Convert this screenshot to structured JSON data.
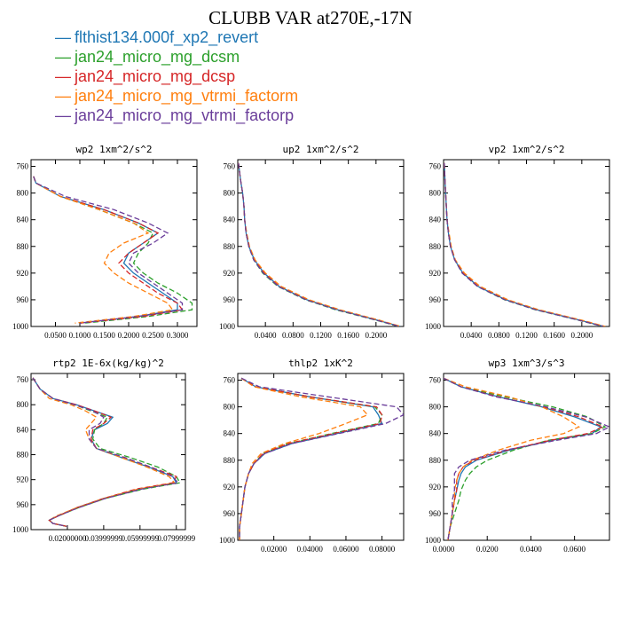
{
  "title": "CLUBB VAR at270E,-17N",
  "legend": [
    {
      "name": "flthist134.000f_xp2_revert",
      "color": "#1f77b4",
      "dash": ""
    },
    {
      "name": "jan24_micro_mg_dcsm",
      "color": "#2ca02c",
      "dash": "6,3"
    },
    {
      "name": "jan24_micro_mg_dcsp",
      "color": "#d62728",
      "dash": "6,3"
    },
    {
      "name": "jan24_micro_mg_vtrmi_factorm",
      "color": "#ff7f0e",
      "dash": "6,3"
    },
    {
      "name": "jan24_micro_mg_vtrmi_factorp",
      "color": "#6a3d9a",
      "dash": "6,3"
    }
  ],
  "chart_data": [
    {
      "type": "line",
      "title": "wp2  1xm^2/s^2",
      "xlim": [
        0.0,
        0.34
      ],
      "ylim": [
        750,
        1000
      ],
      "xticks": [
        0.05,
        0.1,
        0.15,
        0.2,
        0.25,
        0.3
      ],
      "xtick_labels": [
        "0.0500",
        "0.1000",
        "0.1500",
        "0.2000",
        "0.2500",
        "0.3000"
      ],
      "yticks": [
        760,
        800,
        840,
        880,
        920,
        960,
        1000
      ],
      "y": [
        775,
        785,
        805,
        825,
        845,
        860,
        875,
        890,
        905,
        920,
        935,
        950,
        965,
        975,
        985,
        995
      ],
      "series": [
        {
          "values": [
            0.005,
            0.01,
            0.06,
            0.15,
            0.22,
            0.26,
            0.23,
            0.2,
            0.19,
            0.21,
            0.24,
            0.27,
            0.3,
            0.3,
            0.22,
            0.1
          ]
        },
        {
          "values": [
            0.005,
            0.01,
            0.06,
            0.14,
            0.21,
            0.25,
            0.24,
            0.22,
            0.21,
            0.23,
            0.26,
            0.3,
            0.33,
            0.33,
            0.24,
            0.11
          ]
        },
        {
          "values": [
            0.005,
            0.01,
            0.06,
            0.15,
            0.22,
            0.26,
            0.23,
            0.2,
            0.18,
            0.2,
            0.23,
            0.26,
            0.3,
            0.31,
            0.23,
            0.1
          ]
        },
        {
          "values": [
            0.005,
            0.01,
            0.06,
            0.14,
            0.21,
            0.24,
            0.19,
            0.16,
            0.15,
            0.17,
            0.2,
            0.24,
            0.28,
            0.29,
            0.21,
            0.09
          ]
        },
        {
          "values": [
            0.005,
            0.01,
            0.07,
            0.17,
            0.24,
            0.28,
            0.25,
            0.21,
            0.2,
            0.22,
            0.25,
            0.28,
            0.31,
            0.31,
            0.22,
            0.1
          ]
        }
      ]
    },
    {
      "type": "line",
      "title": "up2  1xm^2/s^2",
      "xlim": [
        0.0,
        0.24
      ],
      "ylim": [
        750,
        1000
      ],
      "xticks": [
        0.04,
        0.08,
        0.12,
        0.16,
        0.2
      ],
      "xtick_labels": [
        "0.0400",
        "0.0800",
        "0.1200",
        "0.1600",
        "0.2000"
      ],
      "yticks": [
        760,
        800,
        840,
        880,
        920,
        960,
        1000
      ],
      "y": [
        755,
        780,
        800,
        820,
        840,
        860,
        880,
        900,
        920,
        940,
        960,
        975,
        990,
        1000
      ],
      "series": [
        {
          "values": [
            0.001,
            0.004,
            0.007,
            0.009,
            0.01,
            0.012,
            0.016,
            0.024,
            0.038,
            0.06,
            0.1,
            0.145,
            0.2,
            0.235
          ]
        },
        {
          "values": [
            0.001,
            0.004,
            0.007,
            0.009,
            0.01,
            0.012,
            0.016,
            0.023,
            0.036,
            0.058,
            0.098,
            0.142,
            0.198,
            0.233
          ]
        },
        {
          "values": [
            0.001,
            0.004,
            0.007,
            0.009,
            0.01,
            0.012,
            0.016,
            0.024,
            0.038,
            0.06,
            0.1,
            0.145,
            0.2,
            0.235
          ]
        },
        {
          "values": [
            0.001,
            0.004,
            0.007,
            0.009,
            0.01,
            0.013,
            0.017,
            0.025,
            0.04,
            0.063,
            0.103,
            0.148,
            0.203,
            0.236
          ]
        },
        {
          "values": [
            0.001,
            0.004,
            0.007,
            0.009,
            0.01,
            0.012,
            0.016,
            0.023,
            0.037,
            0.059,
            0.099,
            0.144,
            0.199,
            0.234
          ]
        }
      ]
    },
    {
      "type": "line",
      "title": "vp2  1xm^2/s^2",
      "xlim": [
        0.0,
        0.24
      ],
      "ylim": [
        750,
        1000
      ],
      "xticks": [
        0.04,
        0.08,
        0.12,
        0.16,
        0.2
      ],
      "xtick_labels": [
        "0.0400",
        "0.0800",
        "0.1200",
        "0.1600",
        "0.2000"
      ],
      "yticks": [
        760,
        800,
        840,
        880,
        920,
        960,
        1000
      ],
      "y": [
        755,
        780,
        800,
        820,
        840,
        860,
        880,
        900,
        920,
        940,
        960,
        975,
        990,
        1000
      ],
      "series": [
        {
          "values": [
            0.001,
            0.002,
            0.003,
            0.004,
            0.005,
            0.007,
            0.01,
            0.016,
            0.028,
            0.05,
            0.09,
            0.135,
            0.195,
            0.232
          ]
        },
        {
          "values": [
            0.001,
            0.002,
            0.003,
            0.004,
            0.005,
            0.007,
            0.01,
            0.016,
            0.027,
            0.049,
            0.088,
            0.133,
            0.193,
            0.23
          ]
        },
        {
          "values": [
            0.001,
            0.002,
            0.003,
            0.004,
            0.005,
            0.007,
            0.01,
            0.016,
            0.028,
            0.05,
            0.09,
            0.135,
            0.195,
            0.232
          ]
        },
        {
          "values": [
            0.001,
            0.002,
            0.003,
            0.004,
            0.005,
            0.008,
            0.011,
            0.017,
            0.03,
            0.053,
            0.093,
            0.138,
            0.198,
            0.234
          ]
        },
        {
          "values": [
            0.001,
            0.002,
            0.003,
            0.004,
            0.005,
            0.007,
            0.01,
            0.016,
            0.027,
            0.049,
            0.089,
            0.134,
            0.194,
            0.231
          ]
        }
      ]
    },
    {
      "type": "line",
      "title": "rtp2  1E-6x(kg/kg)^2",
      "xlim": [
        0.0,
        0.085
      ],
      "ylim": [
        750,
        1000
      ],
      "xticks": [
        0.02,
        0.04,
        0.06,
        0.08
      ],
      "xtick_labels": [
        "0.02000000",
        "0.03999999",
        "0.05999999",
        "0.07999999"
      ],
      "yticks": [
        760,
        800,
        840,
        880,
        920,
        960,
        1000
      ],
      "y": [
        757,
        775,
        790,
        800,
        810,
        820,
        830,
        840,
        855,
        870,
        885,
        900,
        915,
        925,
        935,
        950,
        965,
        978,
        985,
        990,
        995
      ],
      "series": [
        {
          "values": [
            0.001,
            0.005,
            0.012,
            0.025,
            0.035,
            0.045,
            0.042,
            0.035,
            0.033,
            0.036,
            0.05,
            0.065,
            0.078,
            0.08,
            0.06,
            0.04,
            0.025,
            0.015,
            0.01,
            0.012,
            0.02
          ]
        },
        {
          "values": [
            0.001,
            0.005,
            0.012,
            0.024,
            0.033,
            0.042,
            0.04,
            0.035,
            0.034,
            0.038,
            0.055,
            0.07,
            0.08,
            0.082,
            0.062,
            0.041,
            0.026,
            0.015,
            0.01,
            0.012,
            0.02
          ]
        },
        {
          "values": [
            0.001,
            0.005,
            0.012,
            0.025,
            0.035,
            0.044,
            0.04,
            0.034,
            0.033,
            0.036,
            0.052,
            0.066,
            0.08,
            0.078,
            0.058,
            0.04,
            0.025,
            0.015,
            0.01,
            0.012,
            0.02
          ]
        },
        {
          "values": [
            0.001,
            0.005,
            0.01,
            0.022,
            0.03,
            0.036,
            0.033,
            0.03,
            0.032,
            0.036,
            0.05,
            0.064,
            0.076,
            0.079,
            0.059,
            0.04,
            0.025,
            0.014,
            0.01,
            0.012,
            0.02
          ]
        },
        {
          "values": [
            0.001,
            0.005,
            0.012,
            0.024,
            0.034,
            0.04,
            0.038,
            0.032,
            0.032,
            0.036,
            0.052,
            0.066,
            0.078,
            0.081,
            0.061,
            0.041,
            0.026,
            0.015,
            0.01,
            0.012,
            0.02
          ]
        }
      ]
    },
    {
      "type": "line",
      "title": "thlp2  1xK^2",
      "xlim": [
        0.0,
        0.092
      ],
      "ylim": [
        750,
        1000
      ],
      "xticks": [
        0.02,
        0.04,
        0.06,
        0.08
      ],
      "xtick_labels": [
        "0.02000",
        "0.04000",
        "0.06000",
        "0.08000"
      ],
      "yticks": [
        760,
        800,
        840,
        880,
        920,
        960,
        1000
      ],
      "y": [
        757,
        770,
        785,
        800,
        812,
        825,
        840,
        855,
        870,
        885,
        900,
        920,
        940,
        960,
        980,
        1000
      ],
      "series": [
        {
          "values": [
            0.002,
            0.01,
            0.04,
            0.075,
            0.078,
            0.08,
            0.055,
            0.03,
            0.015,
            0.009,
            0.006,
            0.004,
            0.003,
            0.002,
            0.001,
            0.001
          ]
        },
        {
          "values": [
            0.002,
            0.01,
            0.04,
            0.076,
            0.08,
            0.078,
            0.052,
            0.028,
            0.014,
            0.009,
            0.006,
            0.004,
            0.003,
            0.002,
            0.001,
            0.001
          ]
        },
        {
          "values": [
            0.002,
            0.01,
            0.04,
            0.077,
            0.08,
            0.079,
            0.053,
            0.028,
            0.014,
            0.009,
            0.006,
            0.004,
            0.003,
            0.002,
            0.001,
            0.001
          ]
        },
        {
          "values": [
            0.002,
            0.009,
            0.035,
            0.068,
            0.072,
            0.06,
            0.045,
            0.026,
            0.013,
            0.008,
            0.006,
            0.004,
            0.003,
            0.002,
            0.001,
            0.001
          ]
        },
        {
          "values": [
            0.002,
            0.012,
            0.05,
            0.088,
            0.092,
            0.082,
            0.056,
            0.03,
            0.015,
            0.009,
            0.006,
            0.004,
            0.003,
            0.002,
            0.001,
            0.001
          ]
        }
      ]
    },
    {
      "type": "line",
      "title": "wp3  1xm^3/s^3",
      "xlim": [
        0.0,
        0.076
      ],
      "ylim": [
        750,
        1000
      ],
      "xticks": [
        0.0,
        0.02,
        0.04,
        0.06
      ],
      "xtick_labels": [
        "0.0000",
        "0.0200",
        "0.0400",
        "0.0600"
      ],
      "yticks": [
        760,
        800,
        840,
        880,
        920,
        960,
        1000
      ],
      "y": [
        757,
        770,
        785,
        800,
        815,
        830,
        840,
        850,
        865,
        880,
        890,
        900,
        910,
        925,
        940,
        960,
        980,
        1000
      ],
      "series": [
        {
          "values": [
            0.0,
            0.008,
            0.025,
            0.045,
            0.06,
            0.072,
            0.068,
            0.05,
            0.03,
            0.015,
            0.01,
            0.008,
            0.007,
            0.006,
            0.005,
            0.004,
            0.003,
            0.002
          ]
        },
        {
          "values": [
            0.0,
            0.008,
            0.028,
            0.05,
            0.066,
            0.074,
            0.068,
            0.048,
            0.032,
            0.02,
            0.015,
            0.012,
            0.01,
            0.008,
            0.007,
            0.005,
            0.003,
            0.002
          ]
        },
        {
          "values": [
            0.0,
            0.008,
            0.025,
            0.046,
            0.062,
            0.073,
            0.066,
            0.049,
            0.029,
            0.014,
            0.009,
            0.007,
            0.006,
            0.006,
            0.005,
            0.004,
            0.003,
            0.002
          ]
        },
        {
          "values": [
            0.0,
            0.01,
            0.03,
            0.045,
            0.055,
            0.062,
            0.055,
            0.04,
            0.025,
            0.013,
            0.009,
            0.007,
            0.006,
            0.005,
            0.005,
            0.004,
            0.003,
            0.002
          ]
        },
        {
          "values": [
            0.0,
            0.008,
            0.024,
            0.047,
            0.065,
            0.076,
            0.07,
            0.052,
            0.028,
            0.012,
            0.007,
            0.005,
            0.005,
            0.005,
            0.004,
            0.004,
            0.003,
            0.002
          ]
        }
      ]
    }
  ]
}
